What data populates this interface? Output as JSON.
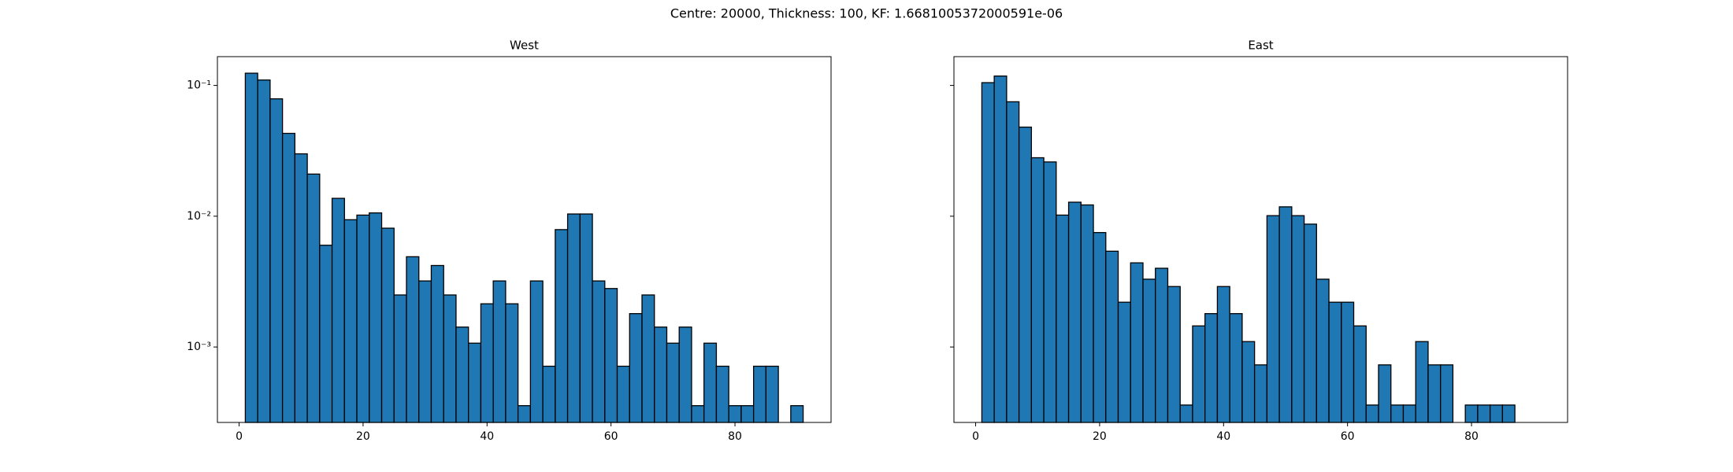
{
  "suptitle": "Centre: 20000, Thickness: 100, KF: 1.6681005372000591e-06",
  "chart_data": [
    {
      "type": "histogram",
      "title": "West",
      "color": "#1f77b4",
      "edgecolor": "#000000",
      "log_y": true,
      "bins": [
        1,
        3,
        5,
        7,
        9,
        11,
        13,
        15,
        17,
        19,
        21,
        23,
        25,
        27,
        29,
        31,
        33,
        35,
        37,
        39,
        41,
        43,
        45,
        47,
        49,
        51,
        53,
        55,
        57,
        59,
        61,
        63,
        65,
        67,
        69,
        71,
        73,
        75,
        77,
        79,
        81,
        83,
        85,
        87,
        89,
        91
      ],
      "values": [
        0.124,
        0.11,
        0.079,
        0.043,
        0.03,
        0.021,
        0.006,
        0.0137,
        0.0094,
        0.0102,
        0.0106,
        0.0081,
        0.0025,
        0.0049,
        0.0032,
        0.0042,
        0.0025,
        0.00142,
        0.00107,
        0.00214,
        0.0032,
        0.00214,
        0.000356,
        0.0032,
        0.000713,
        0.0079,
        0.0104,
        0.0104,
        0.0032,
        0.0028,
        0.000713,
        0.0018,
        0.0025,
        0.00142,
        0.00107,
        0.00142,
        0.000356,
        0.00107,
        0.000713,
        0.000356,
        0.000356,
        0.000713,
        0.000713,
        0,
        0.000356
      ],
      "xlim": [
        -3.5,
        95.5
      ],
      "xticks": [
        0,
        20,
        40,
        60,
        80
      ],
      "ylim": [
        0.000265,
        0.166
      ],
      "yticks": [
        {
          "value": 0.1,
          "label": "10⁻¹"
        },
        {
          "value": 0.01,
          "label": "10⁻²"
        },
        {
          "value": 0.001,
          "label": "10⁻³"
        }
      ]
    },
    {
      "type": "histogram",
      "title": "East",
      "color": "#1f77b4",
      "edgecolor": "#000000",
      "log_y": true,
      "bins": [
        1,
        3,
        5,
        7,
        9,
        11,
        13,
        15,
        17,
        19,
        21,
        23,
        25,
        27,
        29,
        31,
        33,
        35,
        37,
        39,
        41,
        43,
        45,
        47,
        49,
        51,
        53,
        55,
        57,
        59,
        61,
        63,
        65,
        67,
        69,
        71,
        73,
        75,
        77,
        79,
        81,
        83,
        85,
        87,
        89,
        91
      ],
      "values": [
        0.105,
        0.118,
        0.075,
        0.048,
        0.028,
        0.026,
        0.0102,
        0.0128,
        0.0122,
        0.0075,
        0.0054,
        0.0022,
        0.0044,
        0.0033,
        0.004,
        0.0029,
        0.00036,
        0.00145,
        0.0018,
        0.0029,
        0.0018,
        0.0011,
        0.00073,
        0.0101,
        0.0118,
        0.0101,
        0.0087,
        0.0033,
        0.0022,
        0.0022,
        0.00145,
        0.00036,
        0.00073,
        0.00036,
        0.00036,
        0.0011,
        0.00073,
        0.00073,
        0,
        0.00036,
        0.00036,
        0.00036,
        0.00036,
        0,
        0
      ],
      "xlim": [
        -3.5,
        95.5
      ],
      "xticks": [
        0,
        20,
        40,
        60,
        80
      ],
      "ylim": [
        0.000265,
        0.166
      ]
    }
  ]
}
